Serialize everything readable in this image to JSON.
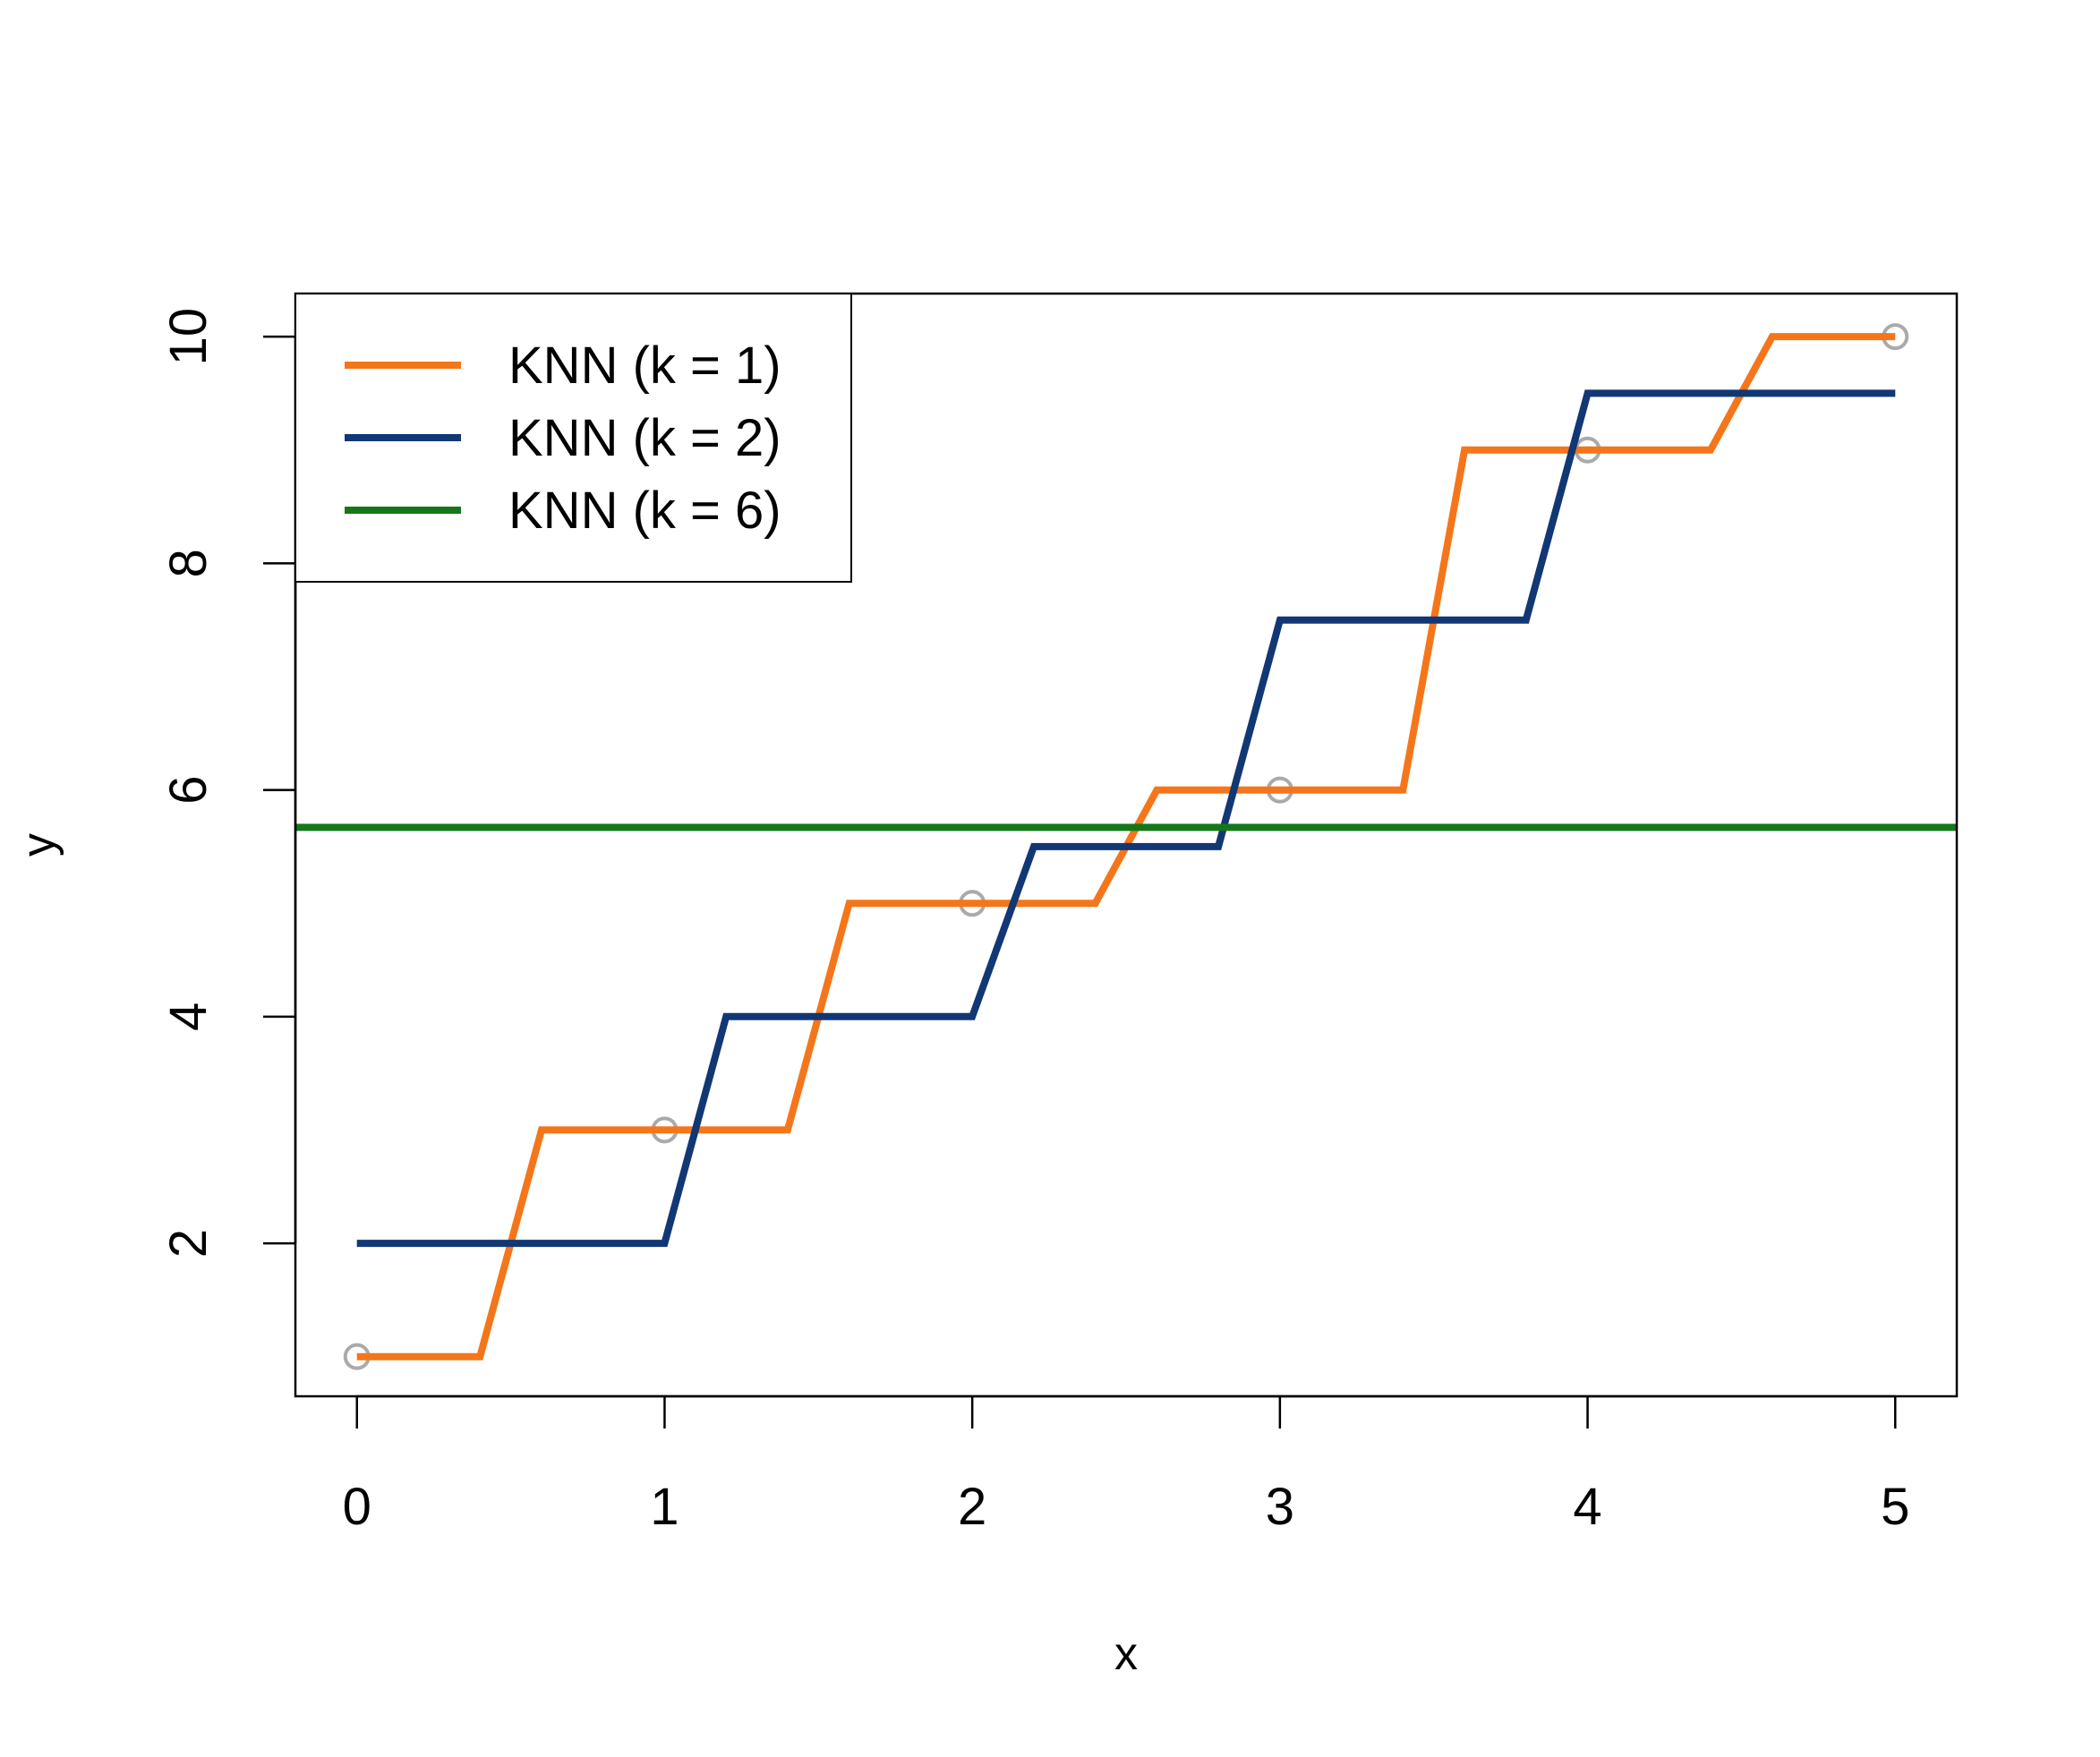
{
  "chart_data": {
    "type": "line",
    "title": "",
    "xlabel": "x",
    "ylabel": "y",
    "xlim": [
      -0.2,
      5.2
    ],
    "ylim": [
      0.65,
      10.38
    ],
    "x_ticks": [
      0,
      1,
      2,
      3,
      4,
      5
    ],
    "y_ticks": [
      2,
      4,
      6,
      8,
      10
    ],
    "grid": false,
    "legend_position": "top-left",
    "points": {
      "color": "#aaaaaa",
      "x": [
        0,
        1,
        2,
        3,
        4,
        5
      ],
      "y": [
        1,
        3,
        5,
        6,
        9,
        10
      ]
    },
    "series": [
      {
        "name": "KNN (k = 1)",
        "color": "#f5761a",
        "x": [
          0,
          0.4,
          0.6,
          1.4,
          1.6,
          2.4,
          2.6,
          3.4,
          3.6,
          4.4,
          4.6,
          5
        ],
        "y": [
          1,
          1,
          3,
          3,
          5,
          5,
          6,
          6,
          9,
          9,
          10,
          10
        ]
      },
      {
        "name": "KNN (k = 2)",
        "color": "#113775",
        "x": [
          0,
          1,
          1.2,
          2,
          2.2,
          2.8,
          3,
          3.8,
          4,
          5
        ],
        "y": [
          2,
          2,
          4,
          4,
          5.5,
          5.5,
          7.5,
          7.5,
          9.5,
          9.5
        ]
      },
      {
        "name": "KNN (k = 6)",
        "color": "#14781a",
        "x": [
          -0.2,
          5.2
        ],
        "y": [
          5.67,
          5.67
        ]
      }
    ]
  }
}
